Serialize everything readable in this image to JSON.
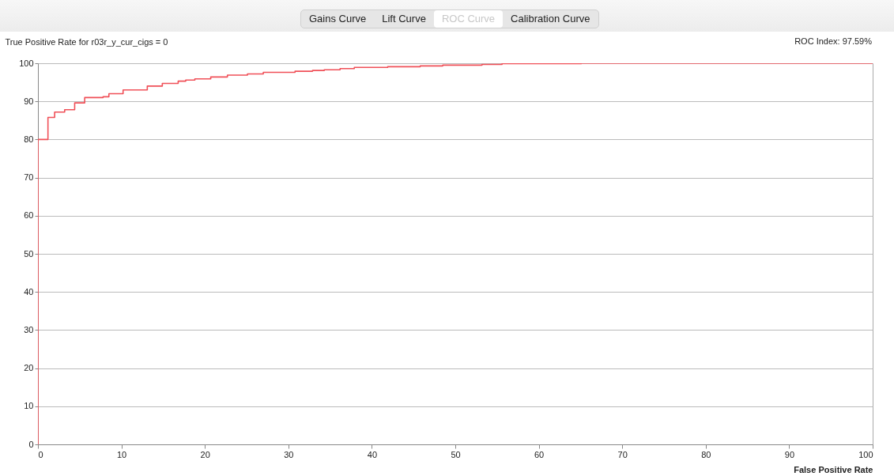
{
  "chart_data": {
    "type": "step",
    "ylabel": "True Positive Rate for r03r_y_cur_cigs = 0",
    "xlabel": "False Positive Rate",
    "annotations": [
      "Gains Curve",
      "Lift Curve",
      "ROC Curve",
      "Calibration Curve",
      "ROC Index: 97.59%"
    ],
    "series": [
      {
        "color": "#f05058",
        "x": [
          0,
          0,
          1.2,
          2.0,
          3.2,
          4.4,
          5.6,
          7.8,
          8.5,
          10.2,
          13.1,
          14.9,
          16.8,
          17.7,
          18.8,
          20.7,
          22.7,
          25.1,
          27.0,
          30.8,
          32.9,
          34.3,
          36.2,
          37.9,
          41.9,
          45.8,
          48.5,
          53.2,
          55.6,
          65.1,
          100
        ],
        "values": [
          0,
          80,
          85.8,
          87.2,
          87.8,
          89.6,
          91.0,
          91.2,
          92.0,
          93.0,
          94.0,
          94.7,
          95.3,
          95.6,
          95.9,
          96.4,
          96.9,
          97.2,
          97.6,
          97.9,
          98.1,
          98.3,
          98.6,
          98.9,
          99.1,
          99.3,
          99.5,
          99.7,
          99.9,
          100,
          100
        ]
      }
    ],
    "xlim": [
      0,
      100
    ],
    "ylim": [
      0,
      100
    ],
    "xticks": [
      0,
      10,
      20,
      30,
      40,
      50,
      60,
      70,
      80,
      90,
      100
    ],
    "yticks": [
      0,
      10,
      20,
      30,
      40,
      50,
      60,
      70,
      80,
      90,
      100
    ],
    "grid": "y",
    "line_style": "solid"
  }
}
